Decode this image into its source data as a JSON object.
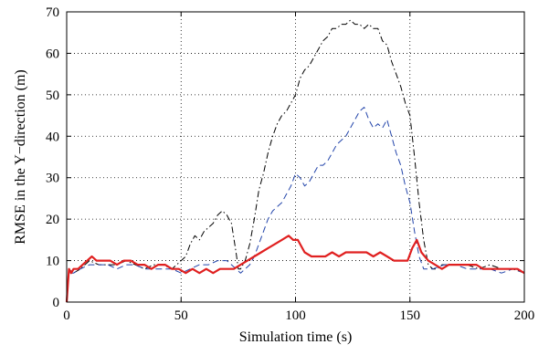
{
  "chart_data": {
    "type": "line",
    "title": "",
    "xlabel": "Simulation time (s)",
    "ylabel": "RMSE in the Y−direction (m)",
    "xlim": [
      0,
      200
    ],
    "ylim": [
      0,
      70
    ],
    "xticks": [
      0,
      50,
      100,
      150,
      200
    ],
    "yticks": [
      0,
      10,
      20,
      30,
      40,
      50,
      60,
      70
    ],
    "xtick_labels": [
      "0",
      "50",
      "100",
      "150",
      "200"
    ],
    "ytick_labels": [
      "0",
      "10",
      "20",
      "30",
      "40",
      "50",
      "60",
      "70"
    ],
    "grid": true,
    "legend": "none",
    "series": [
      {
        "color": "#000000",
        "style": "dashdot",
        "x": [
          0,
          1,
          3,
          6,
          10,
          14,
          18,
          22,
          26,
          30,
          34,
          38,
          42,
          46,
          50,
          52,
          54,
          56,
          58,
          60,
          62,
          64,
          66,
          68,
          70,
          72,
          74,
          75,
          76,
          78,
          80,
          82,
          84,
          86,
          88,
          90,
          92,
          94,
          96,
          98,
          100,
          102,
          104,
          106,
          108,
          110,
          112,
          114,
          116,
          118,
          120,
          122,
          124,
          126,
          128,
          130,
          132,
          134,
          136,
          138,
          140,
          142,
          144,
          146,
          148,
          150,
          152,
          154,
          156,
          158,
          160,
          162,
          164,
          166,
          170,
          175,
          180,
          185,
          190,
          195,
          200
        ],
        "y": [
          0,
          8,
          7,
          8,
          10,
          9,
          9,
          9,
          10,
          9,
          8,
          9,
          9,
          8,
          10,
          11,
          14,
          16,
          15,
          17,
          18,
          19,
          21,
          22,
          21,
          19,
          12,
          8,
          8,
          10,
          14,
          20,
          27,
          31,
          36,
          40,
          43,
          45,
          46,
          48,
          50,
          54,
          56,
          57,
          59,
          61,
          63,
          64,
          66,
          66,
          67,
          67,
          68,
          67,
          67,
          66,
          67,
          66,
          66,
          63,
          62,
          58,
          55,
          52,
          48,
          45,
          35,
          24,
          15,
          9,
          8,
          8,
          9,
          9,
          9,
          9,
          8,
          9,
          8,
          8,
          7
        ]
      },
      {
        "color": "#2244aa",
        "style": "dashed",
        "x": [
          0,
          1,
          3,
          6,
          10,
          14,
          18,
          22,
          26,
          30,
          34,
          38,
          42,
          46,
          50,
          54,
          58,
          62,
          66,
          70,
          72,
          74,
          76,
          78,
          80,
          82,
          84,
          86,
          88,
          90,
          92,
          94,
          96,
          98,
          100,
          102,
          104,
          106,
          108,
          110,
          112,
          114,
          116,
          118,
          120,
          122,
          124,
          126,
          128,
          130,
          132,
          134,
          136,
          138,
          140,
          142,
          144,
          146,
          148,
          150,
          152,
          154,
          156,
          158,
          160,
          165,
          170,
          175,
          180,
          185,
          190,
          195,
          200
        ],
        "y": [
          0,
          7,
          7,
          8,
          9,
          9,
          9,
          8,
          9,
          9,
          8,
          8,
          8,
          8,
          7,
          8,
          9,
          9,
          10,
          10,
          9,
          8,
          7,
          8,
          9,
          11,
          14,
          17,
          20,
          22,
          23,
          24,
          26,
          28,
          31,
          30,
          28,
          29,
          31,
          33,
          33,
          34,
          36,
          38,
          39,
          40,
          42,
          44,
          46,
          47,
          44,
          42,
          43,
          42,
          44,
          40,
          36,
          33,
          28,
          24,
          17,
          11,
          8,
          8,
          8,
          9,
          9,
          8,
          8,
          8,
          7,
          8,
          7
        ]
      },
      {
        "color": "#e02020",
        "style": "solid",
        "x": [
          0,
          1,
          2,
          3,
          5,
          7,
          9,
          11,
          13,
          16,
          19,
          22,
          25,
          28,
          31,
          34,
          37,
          40,
          43,
          46,
          49,
          52,
          55,
          58,
          61,
          64,
          67,
          70,
          73,
          76,
          79,
          82,
          85,
          88,
          91,
          94,
          97,
          99,
          101,
          104,
          107,
          110,
          113,
          116,
          119,
          122,
          125,
          128,
          131,
          134,
          137,
          140,
          143,
          146,
          149,
          151,
          153,
          155,
          158,
          161,
          164,
          167,
          170,
          173,
          176,
          179,
          182,
          185,
          188,
          191,
          194,
          197,
          200
        ],
        "y": [
          0,
          8,
          7,
          8,
          8,
          9,
          10,
          11,
          10,
          10,
          10,
          9,
          10,
          10,
          9,
          9,
          8,
          9,
          9,
          8,
          8,
          7,
          8,
          7,
          8,
          7,
          8,
          8,
          8,
          9,
          10,
          11,
          12,
          13,
          14,
          15,
          16,
          15,
          15,
          12,
          11,
          11,
          11,
          12,
          11,
          12,
          12,
          12,
          12,
          11,
          12,
          11,
          10,
          10,
          10,
          13,
          15,
          12,
          10,
          9,
          8,
          9,
          9,
          9,
          9,
          9,
          8,
          8,
          8,
          8,
          8,
          8,
          7
        ]
      }
    ]
  }
}
